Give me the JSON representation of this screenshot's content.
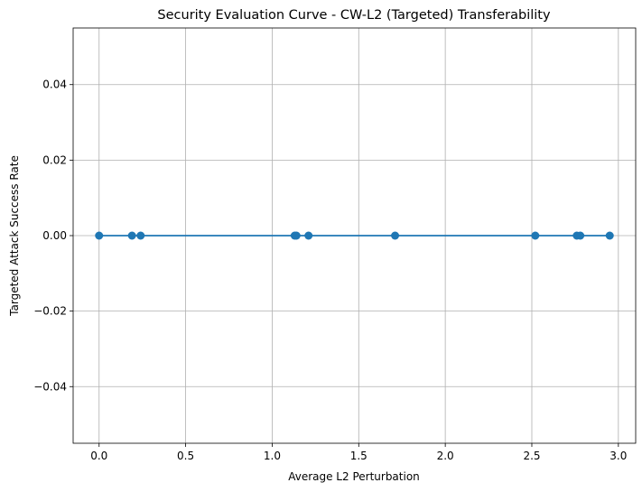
{
  "chart_data": {
    "type": "line",
    "title": "Security Evaluation Curve - CW-L2 (Targeted) Transferability",
    "xlabel": "Average L2 Perturbation",
    "ylabel": "Targeted Attack Success Rate",
    "xlim": [
      -0.15,
      3.1
    ],
    "ylim": [
      -0.055,
      0.055
    ],
    "x_ticks": [
      {
        "value": 0.0,
        "label": "0.0"
      },
      {
        "value": 0.5,
        "label": "0.5"
      },
      {
        "value": 1.0,
        "label": "1.0"
      },
      {
        "value": 1.5,
        "label": "1.5"
      },
      {
        "value": 2.0,
        "label": "2.0"
      },
      {
        "value": 2.5,
        "label": "2.5"
      },
      {
        "value": 3.0,
        "label": "3.0"
      }
    ],
    "y_ticks": [
      {
        "value": -0.04,
        "label": "−0.04"
      },
      {
        "value": -0.02,
        "label": "−0.02"
      },
      {
        "value": 0.0,
        "label": "0.00"
      },
      {
        "value": 0.02,
        "label": "0.02"
      },
      {
        "value": 0.04,
        "label": "0.04"
      }
    ],
    "grid": true,
    "series": [
      {
        "color": "#1f77b4",
        "marker": "circle",
        "x": [
          0.0,
          0.19,
          0.24,
          1.13,
          1.14,
          1.21,
          1.71,
          2.52,
          2.76,
          2.78,
          2.95
        ],
        "y": [
          0,
          0,
          0,
          0,
          0,
          0,
          0,
          0,
          0,
          0,
          0
        ]
      }
    ]
  }
}
